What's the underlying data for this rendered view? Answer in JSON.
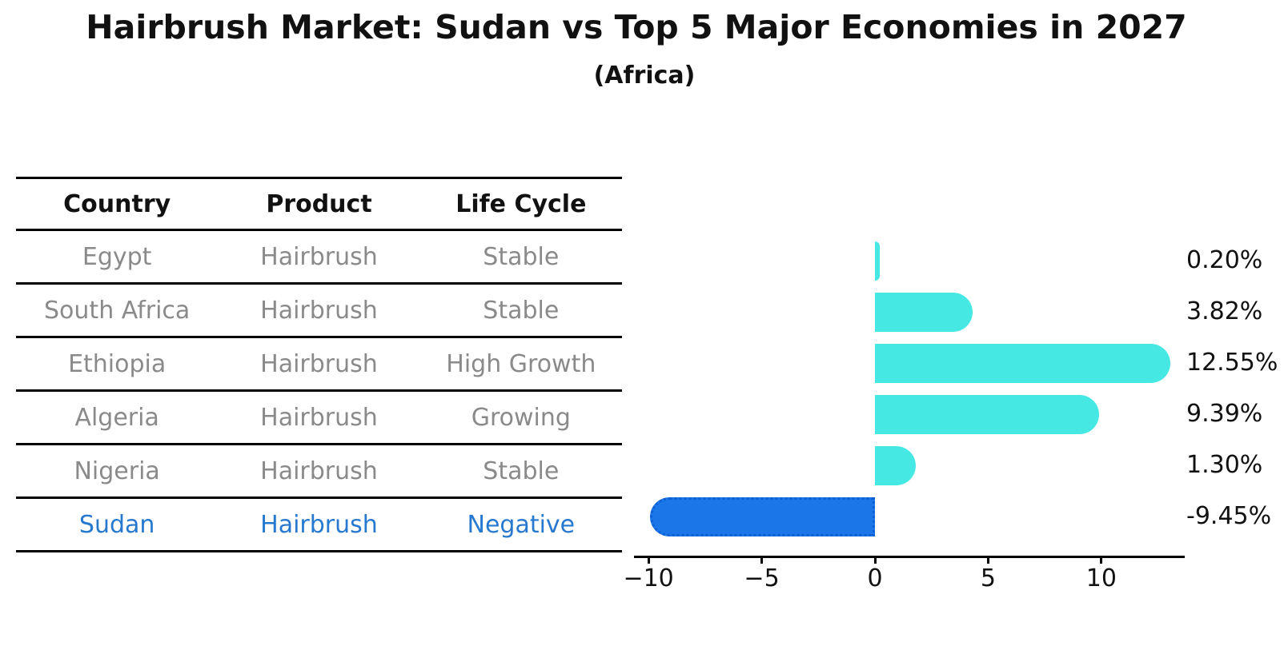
{
  "title": "Hairbrush Market: Sudan vs Top 5 Major Economies in 2027",
  "subtitle": "(Africa)",
  "table": {
    "headers": [
      "Country",
      "Product",
      "Life Cycle"
    ],
    "rows": [
      {
        "country": "Egypt",
        "product": "Hairbrush",
        "life_cycle": "Stable",
        "highlight": false
      },
      {
        "country": "South Africa",
        "product": "Hairbrush",
        "life_cycle": "Stable",
        "highlight": false
      },
      {
        "country": "Ethiopia",
        "product": "Hairbrush",
        "life_cycle": "High Growth",
        "highlight": false
      },
      {
        "country": "Algeria",
        "product": "Hairbrush",
        "life_cycle": "Growing",
        "highlight": false
      },
      {
        "country": "Nigeria",
        "product": "Hairbrush",
        "life_cycle": "Stable",
        "highlight": false
      },
      {
        "country": "Sudan",
        "product": "Hairbrush",
        "life_cycle": "Negative",
        "highlight": true
      }
    ]
  },
  "chart_data": {
    "type": "bar",
    "orientation": "horizontal",
    "categories": [
      "Egypt",
      "South Africa",
      "Ethiopia",
      "Algeria",
      "Nigeria",
      "Sudan"
    ],
    "values": [
      0.2,
      3.82,
      12.55,
      9.39,
      1.3,
      -9.45
    ],
    "value_labels": [
      "0.20%",
      "3.82%",
      "12.55%",
      "9.39%",
      "1.30%",
      "-9.45%"
    ],
    "x_ticks": [
      -10,
      -5,
      0,
      5,
      10
    ],
    "x_tick_labels": [
      "−10",
      "−5",
      "0",
      "5",
      "10"
    ],
    "xlim": [
      -10.64,
      13.68
    ],
    "highlight_index": 5,
    "title": "Hairbrush Market: Sudan vs Top 5 Major Economies in 2027",
    "subtitle": "(Africa)",
    "xlabel": "",
    "ylabel": "",
    "grid": false,
    "legend": false
  },
  "colors": {
    "bar": "#46e8e4",
    "highlight_bar": "#1b76e8",
    "highlight_bar_border": "#0d5fd6",
    "table_text": "#8a8a8a",
    "highlight_text": "#2679cf",
    "axis": "#000000",
    "title_text": "#111111"
  }
}
